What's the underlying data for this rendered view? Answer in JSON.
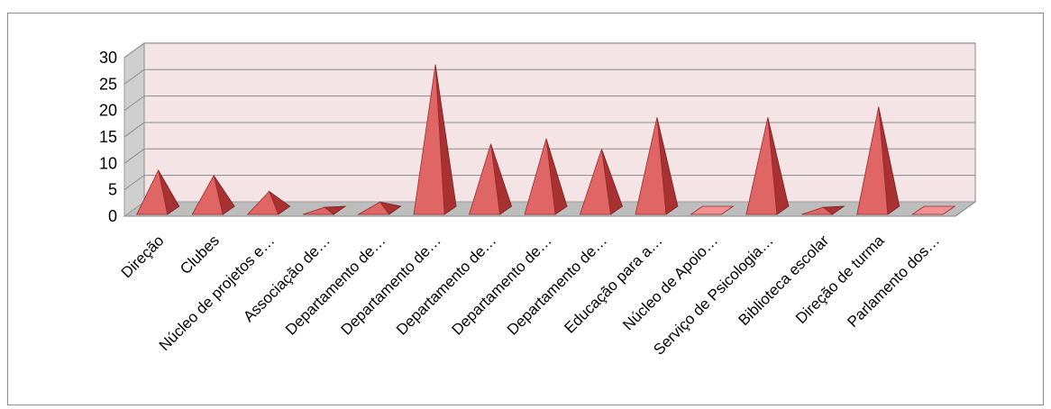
{
  "chart_data": {
    "type": "bar",
    "style": "3d-pyramid",
    "categories": [
      "Direção",
      "Clubes",
      "Núcleo de projetos e…",
      "Associação de…",
      "Departamento de…",
      "Departamento de…",
      "Departamento de…",
      "Departamento de…",
      "Departamento de…",
      "Educação para a…",
      "Núcleo de Apoio…",
      "Serviço de Psicologia…",
      "Biblioteca escolar",
      "Direção de turma",
      "Parlamento dos…"
    ],
    "values": [
      8,
      7,
      4,
      1,
      2,
      28,
      13,
      14,
      12,
      18,
      0,
      18,
      1,
      20,
      0
    ],
    "yticks": [
      "0",
      "5",
      "10",
      "15",
      "20",
      "25",
      "30"
    ],
    "ylim": [
      0,
      30
    ],
    "title": "",
    "xlabel": "",
    "ylabel": "",
    "grid": true,
    "legend": "none",
    "colors": {
      "bar_front": "#e06666",
      "bar_side": "#a83232",
      "bar_top": "#f09090",
      "wall": "#f5e4e6",
      "wall_side": "#cfcfcf",
      "floor": "#bdbdbd",
      "grid": "#8a8a8a"
    }
  }
}
